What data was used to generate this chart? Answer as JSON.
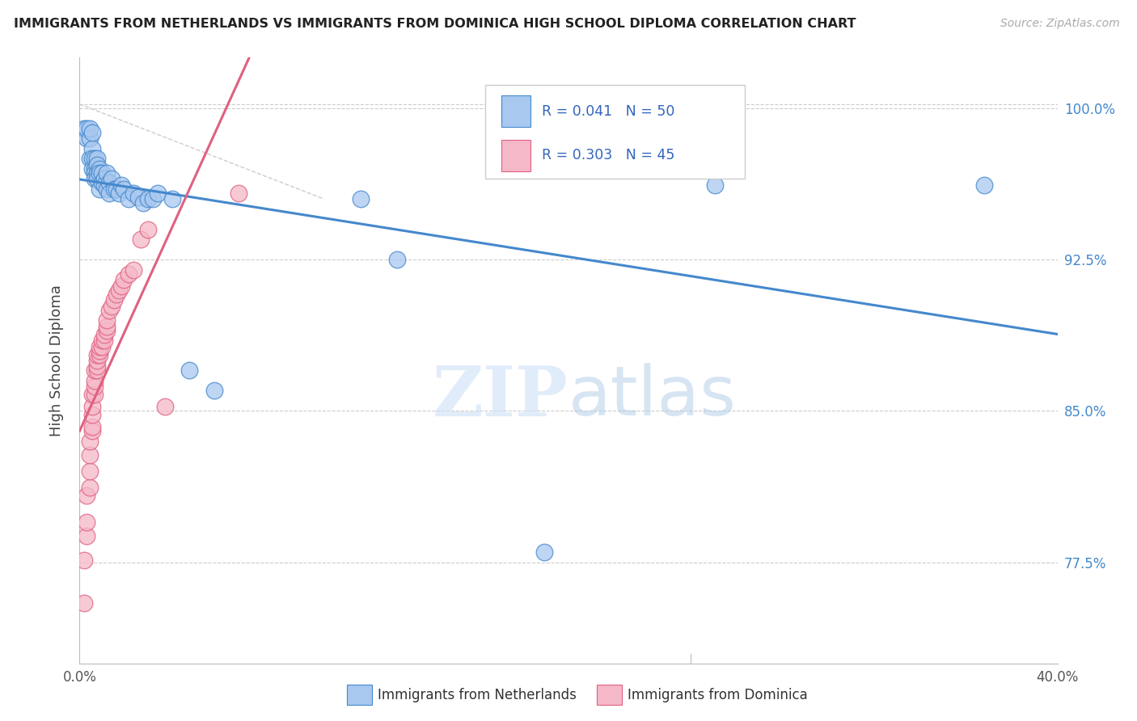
{
  "title": "IMMIGRANTS FROM NETHERLANDS VS IMMIGRANTS FROM DOMINICA HIGH SCHOOL DIPLOMA CORRELATION CHART",
  "source": "Source: ZipAtlas.com",
  "ylabel": "High School Diploma",
  "yticks": [
    0.775,
    0.85,
    0.925,
    1.0
  ],
  "ytick_labels": [
    "77.5%",
    "85.0%",
    "92.5%",
    "100.0%"
  ],
  "xmin": 0.0,
  "xmax": 0.4,
  "ymin": 0.725,
  "ymax": 1.025,
  "netherlands_color": "#A8C8F0",
  "dominica_color": "#F5B8C8",
  "netherlands_line_color": "#4488CC",
  "dominica_line_color": "#E06080",
  "watermark_zip": "ZIP",
  "watermark_atlas": "atlas",
  "legend_label_netherlands": "Immigrants from Netherlands",
  "legend_label_dominica": "Immigrants from Dominica",
  "netherlands_x": [
    0.002,
    0.003,
    0.003,
    0.004,
    0.004,
    0.004,
    0.005,
    0.005,
    0.005,
    0.005,
    0.006,
    0.006,
    0.006,
    0.006,
    0.007,
    0.007,
    0.007,
    0.007,
    0.008,
    0.008,
    0.008,
    0.009,
    0.009,
    0.01,
    0.01,
    0.011,
    0.011,
    0.012,
    0.012,
    0.013,
    0.014,
    0.015,
    0.016,
    0.017,
    0.018,
    0.02,
    0.022,
    0.024,
    0.026,
    0.028,
    0.03,
    0.032,
    0.038,
    0.045,
    0.055,
    0.115,
    0.13,
    0.19,
    0.26,
    0.37
  ],
  "netherlands_y": [
    0.99,
    0.985,
    0.99,
    0.975,
    0.985,
    0.99,
    0.98,
    0.975,
    0.97,
    0.988,
    0.975,
    0.97,
    0.968,
    0.965,
    0.975,
    0.972,
    0.968,
    0.965,
    0.97,
    0.968,
    0.96,
    0.968,
    0.963,
    0.965,
    0.962,
    0.968,
    0.96,
    0.963,
    0.958,
    0.965,
    0.96,
    0.96,
    0.958,
    0.962,
    0.96,
    0.955,
    0.958,
    0.956,
    0.953,
    0.955,
    0.955,
    0.958,
    0.955,
    0.87,
    0.86,
    0.955,
    0.925,
    0.78,
    0.962,
    0.962
  ],
  "dominica_x": [
    0.002,
    0.002,
    0.003,
    0.003,
    0.003,
    0.004,
    0.004,
    0.004,
    0.004,
    0.005,
    0.005,
    0.005,
    0.005,
    0.005,
    0.006,
    0.006,
    0.006,
    0.006,
    0.007,
    0.007,
    0.007,
    0.007,
    0.008,
    0.008,
    0.008,
    0.009,
    0.009,
    0.01,
    0.01,
    0.011,
    0.011,
    0.011,
    0.012,
    0.013,
    0.014,
    0.015,
    0.016,
    0.017,
    0.018,
    0.02,
    0.022,
    0.025,
    0.028,
    0.035,
    0.065
  ],
  "dominica_y": [
    0.755,
    0.776,
    0.788,
    0.795,
    0.808,
    0.812,
    0.82,
    0.828,
    0.835,
    0.84,
    0.842,
    0.848,
    0.852,
    0.858,
    0.858,
    0.862,
    0.865,
    0.87,
    0.87,
    0.872,
    0.875,
    0.878,
    0.878,
    0.88,
    0.882,
    0.882,
    0.885,
    0.885,
    0.888,
    0.89,
    0.892,
    0.895,
    0.9,
    0.902,
    0.905,
    0.908,
    0.91,
    0.912,
    0.915,
    0.918,
    0.92,
    0.935,
    0.94,
    0.852,
    0.958
  ]
}
